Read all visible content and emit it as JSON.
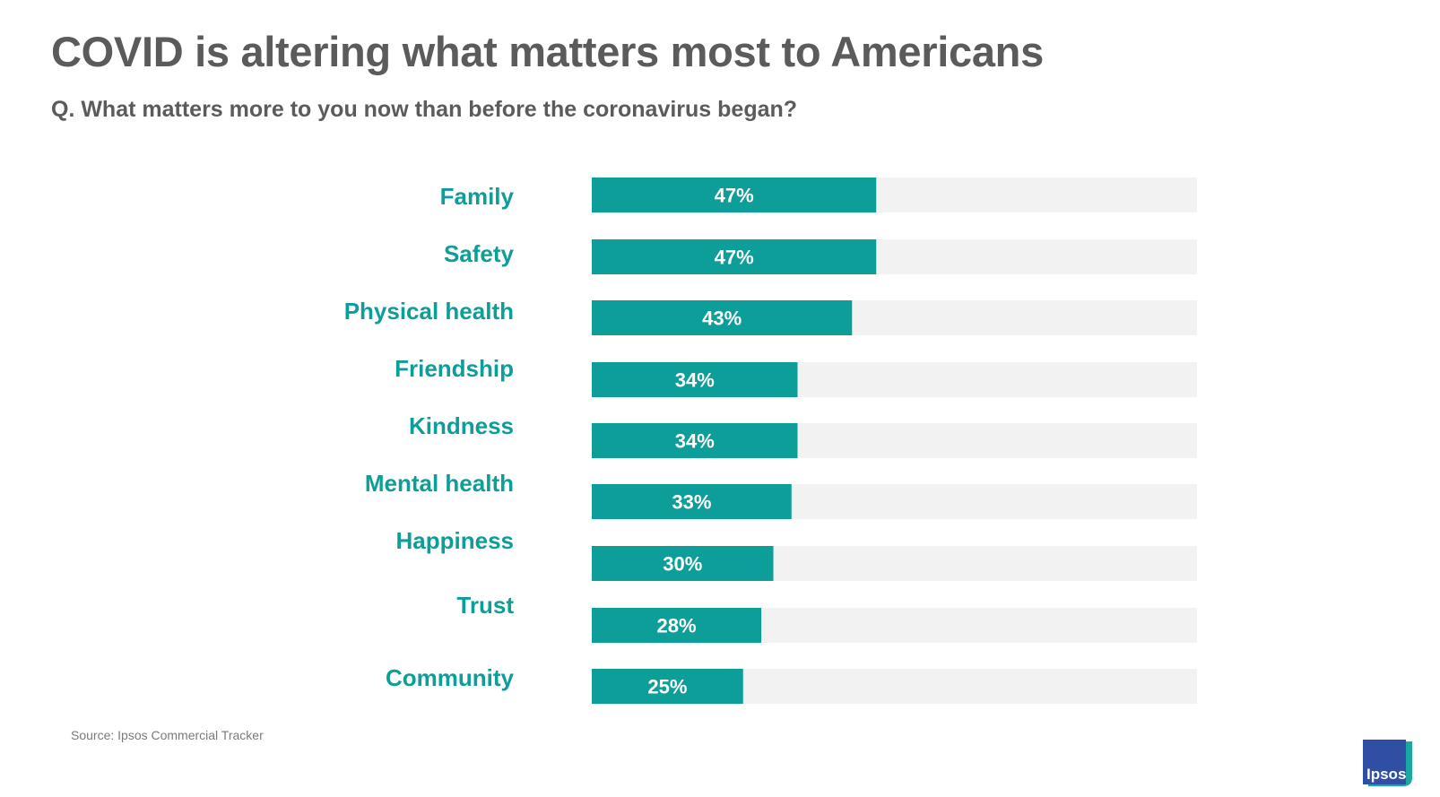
{
  "colors": {
    "bar": "#0e9e99",
    "track": "#f2f2f2",
    "label": "#0e9e99",
    "title": "#5b5b5b"
  },
  "chart_data": {
    "type": "bar",
    "orientation": "horizontal",
    "title": "COVID is altering what matters most to Americans",
    "subtitle": "Q. What matters more to you now than before the coronavirus began?",
    "categories": [
      "Family",
      "Safety",
      "Physical health",
      "Friendship",
      "Kindness",
      "Mental health",
      "Happiness",
      "Trust",
      "Community"
    ],
    "values": [
      47,
      47,
      43,
      34,
      34,
      33,
      30,
      28,
      25
    ],
    "value_labels": [
      "47%",
      "47%",
      "43%",
      "34%",
      "34%",
      "33%",
      "30%",
      "28%",
      "25%"
    ],
    "xlim": [
      0,
      100
    ],
    "xlabel": "",
    "ylabel": "",
    "grid": false,
    "legend": "none"
  },
  "source": "Source: Ipsos Commercial Tracker",
  "logo": {
    "text": "Ipsos",
    "color": "#2e4fa3",
    "accent": "#1aa8a3"
  }
}
